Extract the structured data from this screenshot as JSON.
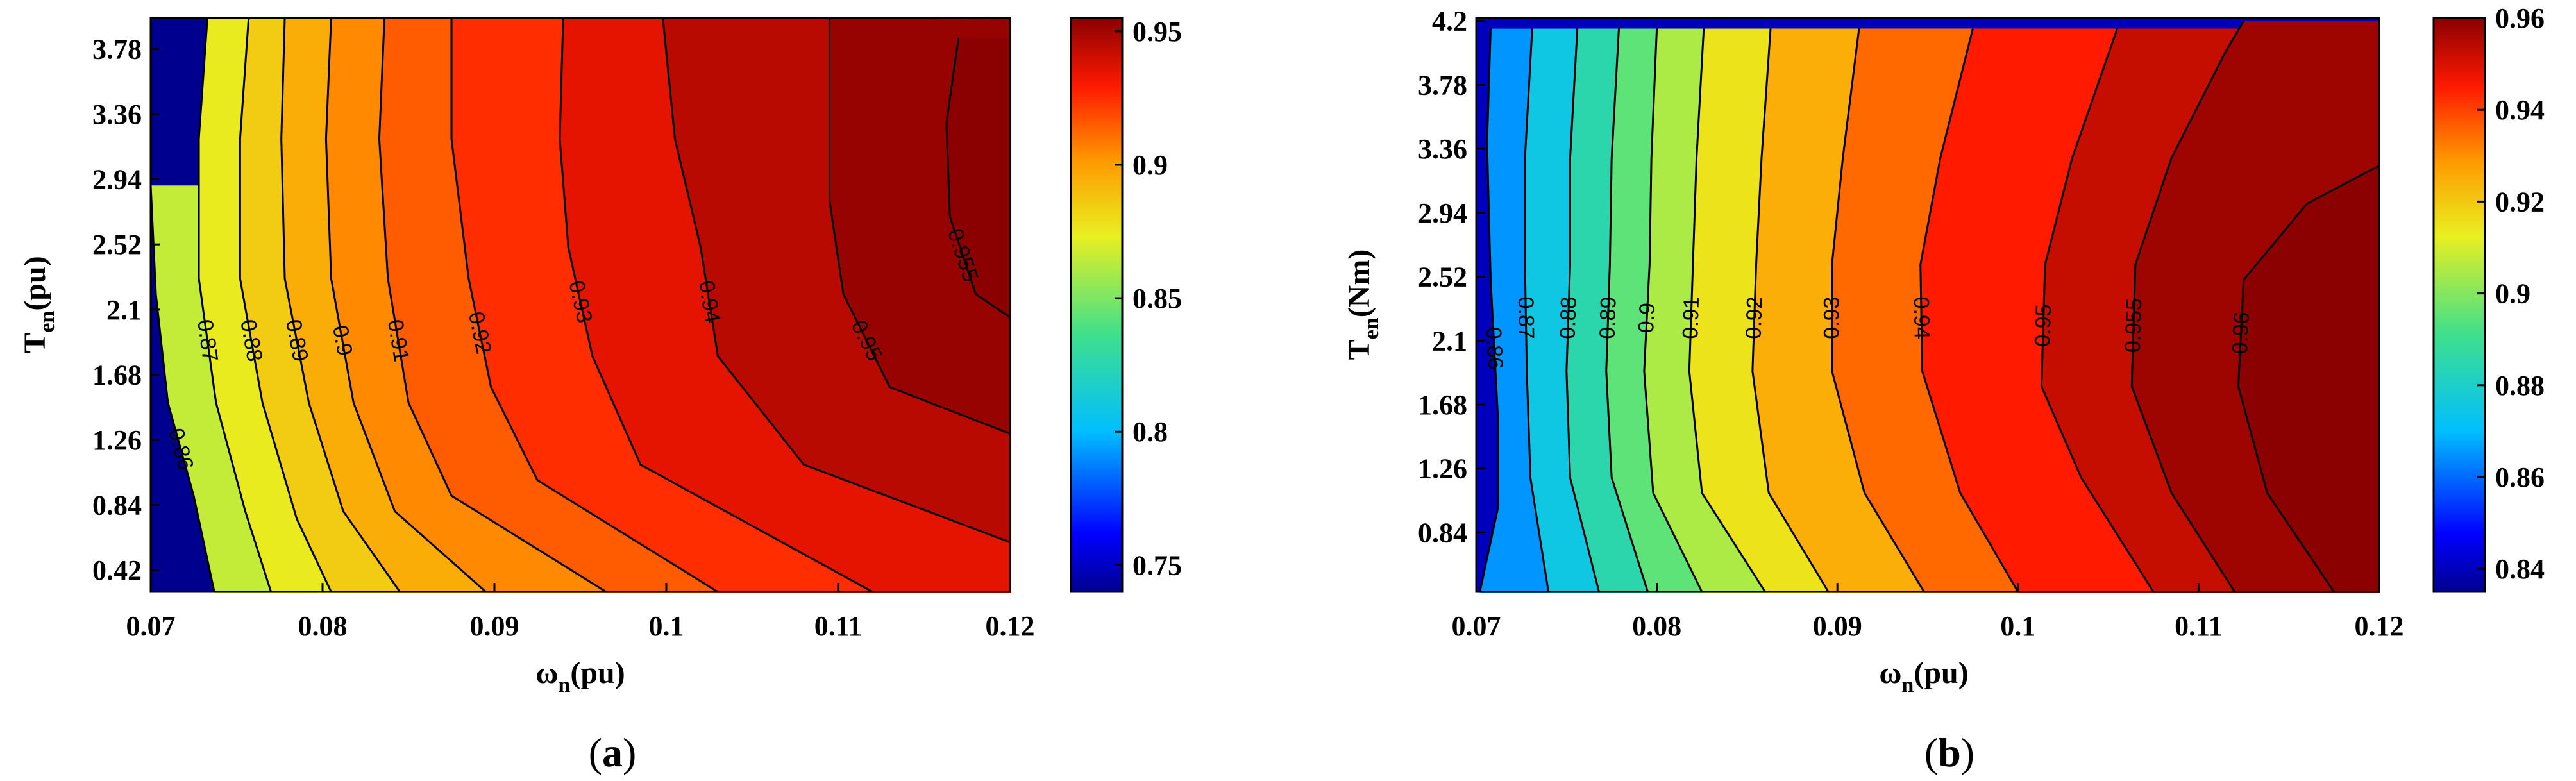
{
  "chart_data": [
    {
      "panel": "a",
      "panel_label": {
        "open": "(",
        "letter": "a",
        "close": ")"
      },
      "type": "contour",
      "xlabel": {
        "main": "ω",
        "sub": "n",
        "unit": "(pu)"
      },
      "ylabel": {
        "main": "T",
        "sub": "en",
        "unit": "(pu)"
      },
      "x_ticks": [
        "0.07",
        "0.08",
        "0.09",
        "0.1",
        "0.11",
        "0.12"
      ],
      "x_tick_values": [
        0.07,
        0.08,
        0.09,
        0.1,
        0.11,
        0.12
      ],
      "y_ticks": [
        "0.42",
        "0.84",
        "1.26",
        "1.68",
        "2.1",
        "2.52",
        "2.94",
        "3.36",
        "3.78"
      ],
      "y_tick_values": [
        0.42,
        0.84,
        1.26,
        1.68,
        2.1,
        2.52,
        2.94,
        3.36,
        3.78
      ],
      "xlim": [
        0.07,
        0.12
      ],
      "ylim": [
        0.28,
        3.98
      ],
      "colorbar": {
        "ticks": [
          "0.75",
          "0.8",
          "0.85",
          "0.9",
          "0.95"
        ],
        "tick_values": [
          0.75,
          0.8,
          0.85,
          0.9,
          0.95
        ],
        "range": [
          0.74,
          0.955
        ]
      },
      "levels": [
        0.86,
        0.87,
        0.88,
        0.89,
        0.9,
        0.91,
        0.92,
        0.93,
        0.94,
        0.95,
        0.955
      ],
      "level_labels": [
        "0.86",
        "0.87",
        "0.88",
        "0.89",
        "0.9",
        "0.91",
        "0.92",
        "0.93",
        "0.94",
        "0.95",
        "0.955"
      ],
      "contours": [
        {
          "level": 0.86,
          "points": [
            [
              0.0737,
              0.28
            ],
            [
              0.0725,
              0.9
            ],
            [
              0.071,
              1.5
            ],
            [
              0.0703,
              2.2
            ],
            [
              0.07,
              2.9
            ]
          ]
        },
        {
          "level": 0.87,
          "points": [
            [
              0.077,
              0.28
            ],
            [
              0.0755,
              0.8
            ],
            [
              0.0738,
              1.5
            ],
            [
              0.0728,
              2.3
            ],
            [
              0.0728,
              3.2
            ],
            [
              0.0733,
              3.98
            ]
          ]
        },
        {
          "level": 0.88,
          "points": [
            [
              0.0805,
              0.28
            ],
            [
              0.0785,
              0.75
            ],
            [
              0.0765,
              1.5
            ],
            [
              0.0752,
              2.3
            ],
            [
              0.0752,
              3.2
            ],
            [
              0.0757,
              3.98
            ]
          ]
        },
        {
          "level": 0.89,
          "points": [
            [
              0.0845,
              0.28
            ],
            [
              0.0812,
              0.8
            ],
            [
              0.0792,
              1.5
            ],
            [
              0.0778,
              2.3
            ],
            [
              0.0776,
              3.2
            ],
            [
              0.0778,
              3.98
            ]
          ]
        },
        {
          "level": 0.9,
          "points": [
            [
              0.0895,
              0.28
            ],
            [
              0.0842,
              0.8
            ],
            [
              0.0818,
              1.5
            ],
            [
              0.0805,
              2.3
            ],
            [
              0.0802,
              3.2
            ],
            [
              0.0805,
              3.98
            ]
          ]
        },
        {
          "level": 0.91,
          "points": [
            [
              0.0965,
              0.28
            ],
            [
              0.0875,
              0.9
            ],
            [
              0.085,
              1.5
            ],
            [
              0.0838,
              2.3
            ],
            [
              0.0833,
              3.2
            ],
            [
              0.0836,
              3.98
            ]
          ]
        },
        {
          "level": 0.92,
          "points": [
            [
              0.103,
              0.28
            ],
            [
              0.0925,
              1.0
            ],
            [
              0.0898,
              1.6
            ],
            [
              0.0885,
              2.3
            ],
            [
              0.0875,
              3.2
            ],
            [
              0.0875,
              3.98
            ]
          ]
        },
        {
          "level": 0.93,
          "points": [
            [
              0.112,
              0.28
            ],
            [
              0.0985,
              1.1
            ],
            [
              0.0957,
              1.8
            ],
            [
              0.0943,
              2.5
            ],
            [
              0.0938,
              3.2
            ],
            [
              0.094,
              3.98
            ]
          ]
        },
        {
          "level": 0.94,
          "points": [
            [
              0.12,
              0.6
            ],
            [
              0.108,
              1.1
            ],
            [
              0.103,
              1.8
            ],
            [
              0.102,
              2.5
            ],
            [
              0.1005,
              3.2
            ],
            [
              0.0998,
              3.98
            ]
          ]
        },
        {
          "level": 0.95,
          "points": [
            [
              0.12,
              1.3
            ],
            [
              0.113,
              1.6
            ],
            [
              0.1103,
              2.2
            ],
            [
              0.1095,
              2.8
            ],
            [
              0.1095,
              3.98
            ]
          ]
        },
        {
          "level": 0.955,
          "points": [
            [
              0.12,
              2.05
            ],
            [
              0.118,
              2.2
            ],
            [
              0.1165,
              2.7
            ],
            [
              0.1163,
              3.3
            ],
            [
              0.117,
              3.85
            ]
          ]
        }
      ]
    },
    {
      "panel": "b",
      "panel_label": {
        "open": "(",
        "letter": "b",
        "close": ")"
      },
      "type": "contour",
      "xlabel": {
        "main": "ω",
        "sub": "n",
        "unit": "(pu)"
      },
      "ylabel": {
        "main": "T",
        "sub": "en",
        "unit": "(Nm)"
      },
      "x_ticks": [
        "0.07",
        "0.08",
        "0.09",
        "0.1",
        "0.11",
        "0.12"
      ],
      "x_tick_values": [
        0.07,
        0.08,
        0.09,
        0.1,
        0.11,
        0.12
      ],
      "y_ticks": [
        "0.84",
        "1.26",
        "1.68",
        "2.1",
        "2.52",
        "2.94",
        "3.36",
        "3.78",
        "4.2"
      ],
      "y_tick_values": [
        0.84,
        1.26,
        1.68,
        2.1,
        2.52,
        2.94,
        3.36,
        3.78,
        4.2
      ],
      "xlim": [
        0.07,
        0.12
      ],
      "ylim": [
        0.45,
        4.22
      ],
      "colorbar": {
        "ticks": [
          "0.84",
          "0.86",
          "0.88",
          "0.9",
          "0.92",
          "0.94",
          "0.96"
        ],
        "tick_values": [
          0.84,
          0.86,
          0.88,
          0.9,
          0.92,
          0.94,
          0.96
        ],
        "range": [
          0.835,
          0.96
        ]
      },
      "levels": [
        0.86,
        0.87,
        0.88,
        0.89,
        0.9,
        0.91,
        0.92,
        0.93,
        0.94,
        0.95,
        0.955,
        0.96
      ],
      "level_labels": [
        "0.86",
        "0.87",
        "0.88",
        "0.89",
        "0.9",
        "0.91",
        "0.92",
        "0.93",
        "0.94",
        "0.95",
        "0.955",
        "0.96"
      ],
      "contours": [
        {
          "level": 0.86,
          "points": [
            [
              0.0702,
              0.45
            ],
            [
              0.0712,
              1.0
            ],
            [
              0.0712,
              1.6
            ],
            [
              0.0708,
              2.5
            ],
            [
              0.0706,
              3.4
            ],
            [
              0.0708,
              4.15
            ]
          ]
        },
        {
          "level": 0.87,
          "points": [
            [
              0.074,
              0.45
            ],
            [
              0.073,
              1.2
            ],
            [
              0.0728,
              1.9
            ],
            [
              0.0727,
              2.6
            ],
            [
              0.0727,
              3.3
            ],
            [
              0.0731,
              4.15
            ]
          ]
        },
        {
          "level": 0.88,
          "points": [
            [
              0.0768,
              0.45
            ],
            [
              0.0752,
              1.2
            ],
            [
              0.075,
              1.9
            ],
            [
              0.0752,
              2.6
            ],
            [
              0.0752,
              3.3
            ],
            [
              0.0756,
              4.15
            ]
          ]
        },
        {
          "level": 0.89,
          "points": [
            [
              0.0795,
              0.45
            ],
            [
              0.0775,
              1.2
            ],
            [
              0.0772,
              1.9
            ],
            [
              0.0774,
              2.6
            ],
            [
              0.0775,
              3.3
            ],
            [
              0.0779,
              4.15
            ]
          ]
        },
        {
          "level": 0.9,
          "points": [
            [
              0.0825,
              0.45
            ],
            [
              0.0798,
              1.1
            ],
            [
              0.0793,
              1.9
            ],
            [
              0.0796,
              2.6
            ],
            [
              0.0797,
              3.3
            ],
            [
              0.08,
              4.15
            ]
          ]
        },
        {
          "level": 0.91,
          "points": [
            [
              0.086,
              0.45
            ],
            [
              0.0825,
              1.1
            ],
            [
              0.0818,
              1.9
            ],
            [
              0.082,
              2.6
            ],
            [
              0.0822,
              3.3
            ],
            [
              0.0826,
              4.15
            ]
          ]
        },
        {
          "level": 0.92,
          "points": [
            [
              0.0895,
              0.45
            ],
            [
              0.0862,
              1.1
            ],
            [
              0.0853,
              1.9
            ],
            [
              0.0855,
              2.6
            ],
            [
              0.0858,
              3.3
            ],
            [
              0.0863,
              4.15
            ]
          ]
        },
        {
          "level": 0.93,
          "points": [
            [
              0.0948,
              0.45
            ],
            [
              0.0915,
              1.1
            ],
            [
              0.0897,
              1.9
            ],
            [
              0.0897,
              2.6
            ],
            [
              0.0903,
              3.3
            ],
            [
              0.0912,
              4.15
            ]
          ]
        },
        {
          "level": 0.94,
          "points": [
            [
              0.1,
              0.45
            ],
            [
              0.0968,
              1.1
            ],
            [
              0.0947,
              1.9
            ],
            [
              0.0946,
              2.6
            ],
            [
              0.0957,
              3.3
            ],
            [
              0.0975,
              4.15
            ]
          ]
        },
        {
          "level": 0.95,
          "points": [
            [
              0.1075,
              0.45
            ],
            [
              0.1035,
              1.2
            ],
            [
              0.1013,
              1.8
            ],
            [
              0.1015,
              2.6
            ],
            [
              0.103,
              3.3
            ],
            [
              0.1055,
              4.15
            ]
          ]
        },
        {
          "level": 0.955,
          "points": [
            [
              0.112,
              0.45
            ],
            [
              0.1085,
              1.1
            ],
            [
              0.1063,
              1.8
            ],
            [
              0.1065,
              2.6
            ],
            [
              0.1085,
              3.3
            ],
            [
              0.1115,
              4.0
            ],
            [
              0.1125,
              4.2
            ]
          ]
        },
        {
          "level": 0.96,
          "points": [
            [
              0.1175,
              0.45
            ],
            [
              0.1138,
              1.1
            ],
            [
              0.1122,
              1.8
            ],
            [
              0.1125,
              2.5
            ],
            [
              0.116,
              3.0
            ],
            [
              0.12,
              3.25
            ]
          ]
        }
      ]
    }
  ]
}
